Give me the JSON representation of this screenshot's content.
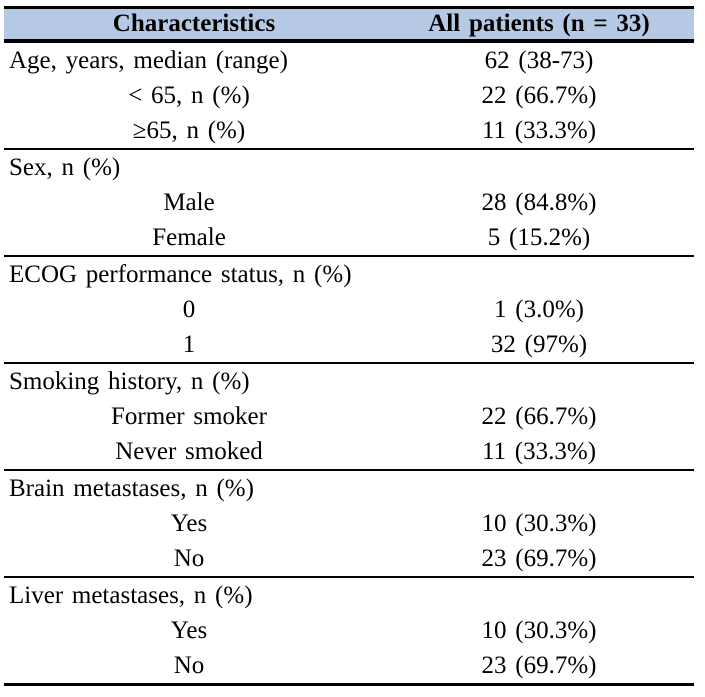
{
  "colors": {
    "header_bg": "#B5C9E4",
    "border": "#000000",
    "text": "#000000"
  },
  "table": {
    "header": {
      "col1": "Characteristics",
      "col2": "All patients (n = 33)"
    },
    "sections": [
      {
        "rows": [
          {
            "label": "Age, years, median (range)",
            "value": "62 (38-73)"
          },
          {
            "label": "< 65, n (%)",
            "value": "22 (66.7%)"
          },
          {
            "label": "≥65, n (%)",
            "value": "11 (33.3%)"
          }
        ]
      },
      {
        "rows": [
          {
            "label": "Sex, n (%)",
            "value": ""
          },
          {
            "label": "Male",
            "value": "28 (84.8%)"
          },
          {
            "label": "Female",
            "value": "5 (15.2%)"
          }
        ]
      },
      {
        "rows": [
          {
            "label": "ECOG performance status, n (%)",
            "value": ""
          },
          {
            "label": "0",
            "value": "1 (3.0%)"
          },
          {
            "label": "1",
            "value": "32 (97%)"
          }
        ]
      },
      {
        "rows": [
          {
            "label": "Smoking history, n (%)",
            "value": ""
          },
          {
            "label": "Former smoker",
            "value": "22 (66.7%)"
          },
          {
            "label": "Never smoked",
            "value": "11 (33.3%)"
          }
        ]
      },
      {
        "rows": [
          {
            "label": "Brain metastases, n (%)",
            "value": ""
          },
          {
            "label": "Yes",
            "value": "10 (30.3%)"
          },
          {
            "label": "No",
            "value": "23 (69.7%)"
          }
        ]
      },
      {
        "rows": [
          {
            "label": "Liver metastases, n (%)",
            "value": ""
          },
          {
            "label": "Yes",
            "value": "10 (30.3%)"
          },
          {
            "label": "No",
            "value": "23 (69.7%)"
          }
        ]
      }
    ]
  }
}
